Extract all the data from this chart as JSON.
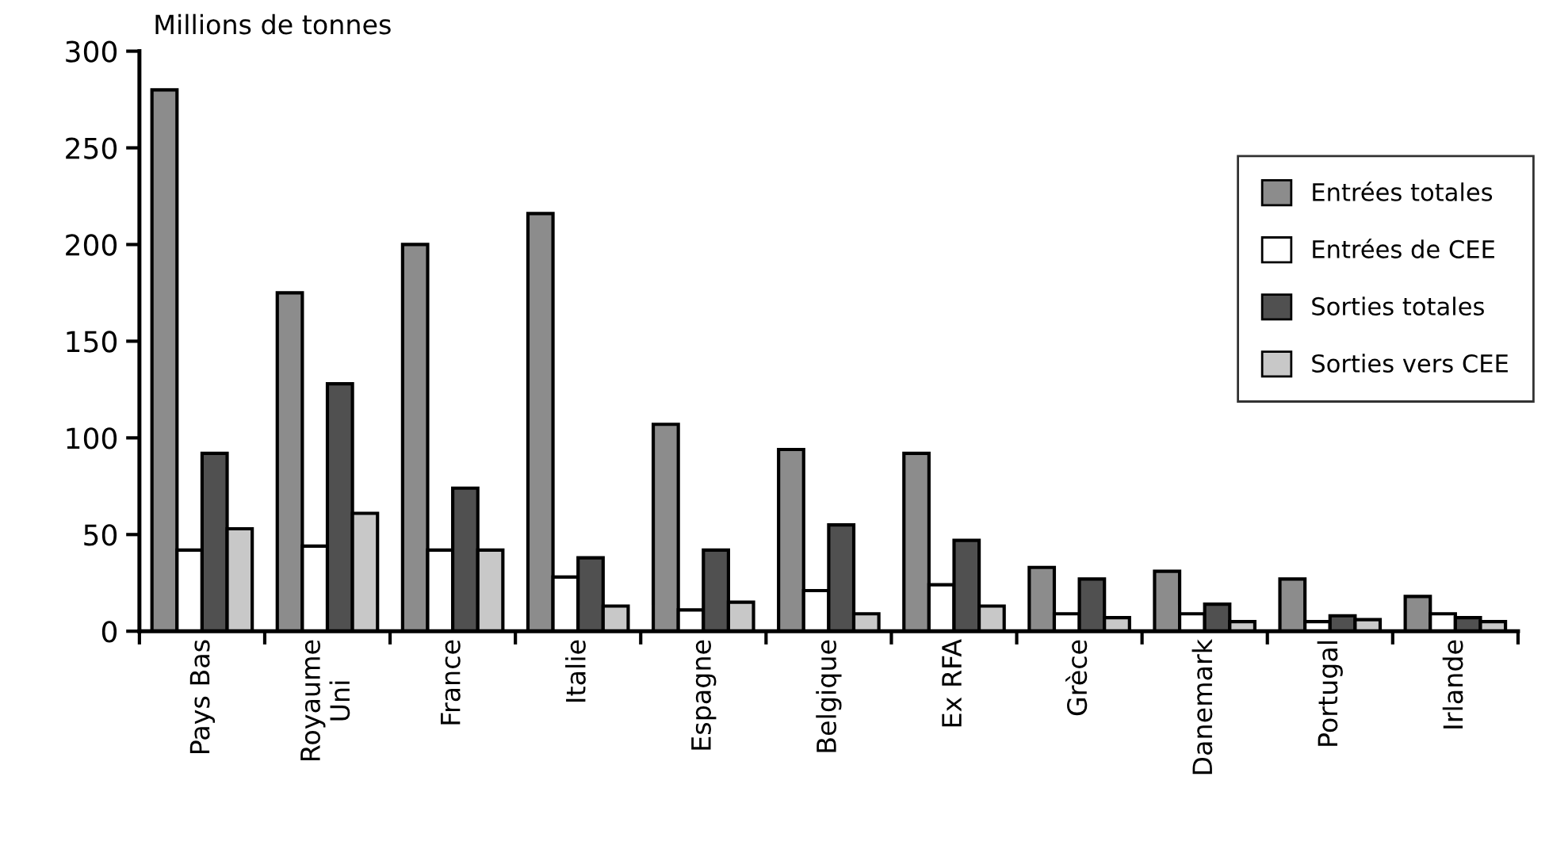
{
  "chart_data": {
    "type": "bar",
    "ylabel": "Millions de tonnes",
    "categories": [
      "Pays Bas",
      "Royaume\nUni",
      "France",
      "Italie",
      "Espagne",
      "Belgique",
      "Ex RFA",
      "Grèce",
      "Danemark",
      "Portugal",
      "Irlande"
    ],
    "series": [
      {
        "name": "Entrées totales",
        "color": "#8c8c8c",
        "values": [
          280,
          175,
          200,
          216,
          107,
          94,
          92,
          33,
          31,
          27,
          18
        ]
      },
      {
        "name": "Entrées de CEE",
        "color": "#ffffff",
        "values": [
          42,
          44,
          42,
          28,
          11,
          21,
          24,
          9,
          9,
          5,
          9
        ]
      },
      {
        "name": "Sorties totales",
        "color": "#505050",
        "values": [
          92,
          128,
          74,
          38,
          42,
          55,
          47,
          27,
          14,
          8,
          7
        ]
      },
      {
        "name": "Sorties vers CEE",
        "color": "#c8c8c8",
        "values": [
          53,
          61,
          42,
          13,
          15,
          9,
          13,
          7,
          5,
          6,
          5
        ]
      }
    ],
    "ylim": [
      0,
      300
    ],
    "yticks": [
      0,
      50,
      100,
      150,
      200,
      250,
      300
    ],
    "grid": false,
    "legend": "right"
  }
}
